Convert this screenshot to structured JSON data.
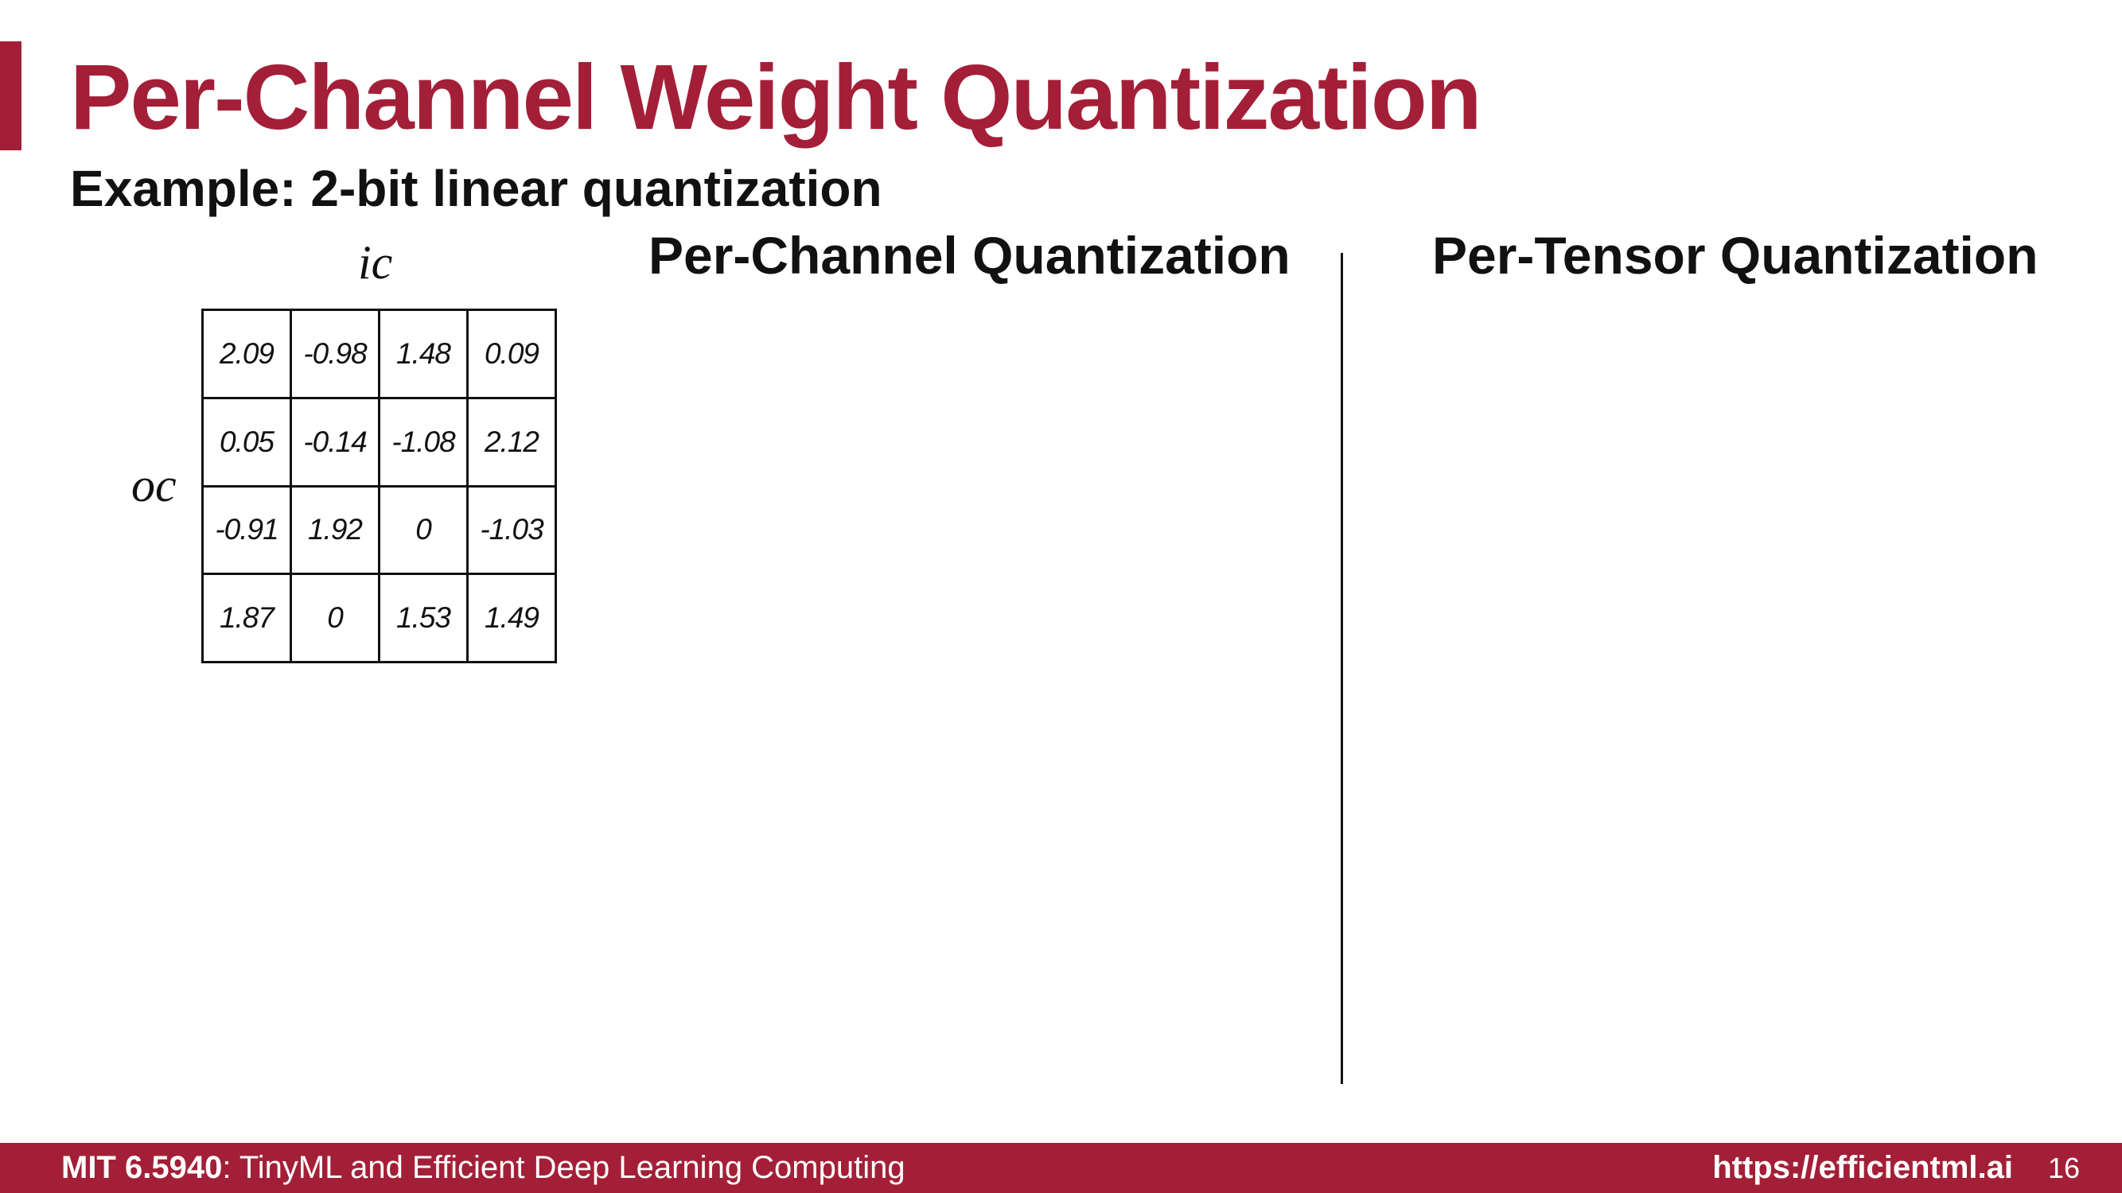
{
  "title": "Per-Channel Weight Quantization",
  "subtitle": "Example: 2-bit linear quantization",
  "matrix": {
    "column_axis_label": "ic",
    "row_axis_label": "oc",
    "rows": [
      [
        "2.09",
        "-0.98",
        "1.48",
        "0.09"
      ],
      [
        "0.05",
        "-0.14",
        "-1.08",
        "2.12"
      ],
      [
        "-0.91",
        "1.92",
        "0",
        "-1.03"
      ],
      [
        "1.87",
        "0",
        "1.53",
        "1.49"
      ]
    ]
  },
  "sections": {
    "per_channel_heading": "Per-Channel Quantization",
    "per_tensor_heading": "Per-Tensor Quantization"
  },
  "footer": {
    "course_code": "MIT 6.5940",
    "course_name": ": TinyML and Efficient Deep Learning Computing",
    "url": "https://efficientml.ai",
    "page_number": "16"
  },
  "colors": {
    "accent": "#a31f37",
    "text": "#111111",
    "background": "#ffffff"
  }
}
